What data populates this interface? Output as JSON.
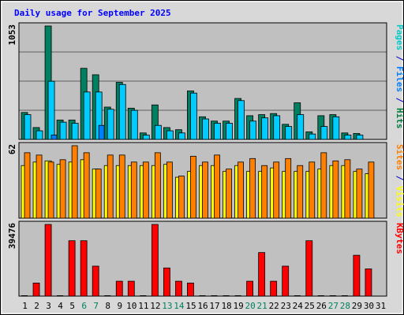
{
  "chart_data": [
    {
      "type": "bar",
      "title": "Daily usage for September 2025",
      "panel": "top",
      "ylim": [
        0,
        1053
      ],
      "y_tick_label": "1053",
      "right_label_parts": [
        {
          "text": "Pages",
          "color": "#00CCCC"
        },
        {
          "text": " / ",
          "color": "#0000CC"
        },
        {
          "text": "Files",
          "color": "#0080FF"
        },
        {
          "text": " / ",
          "color": "#0000CC"
        },
        {
          "text": "Hits",
          "color": "#008040"
        }
      ],
      "categories": [
        "1",
        "2",
        "3",
        "4",
        "5",
        "6",
        "7",
        "8",
        "9",
        "10",
        "11",
        "12",
        "13",
        "14",
        "15",
        "16",
        "17",
        "18",
        "19",
        "20",
        "21",
        "22",
        "23",
        "24",
        "25",
        "26",
        "27",
        "28",
        "29",
        "30",
        "31"
      ],
      "weekend_categories": [
        "6",
        "7",
        "13",
        "14",
        "20",
        "21",
        "27",
        "28"
      ],
      "series": [
        {
          "name": "Hits",
          "color": "#008060",
          "values": [
            250,
            110,
            1053,
            180,
            180,
            660,
            600,
            300,
            530,
            290,
            60,
            320,
            110,
            90,
            450,
            210,
            170,
            170,
            380,
            220,
            230,
            240,
            140,
            340,
            70,
            220,
            230,
            60,
            55,
            0,
            0
          ]
        },
        {
          "name": "Files",
          "color": "#00CCFF",
          "values": [
            230,
            80,
            540,
            160,
            150,
            440,
            440,
            280,
            510,
            270,
            40,
            130,
            80,
            60,
            430,
            190,
            150,
            150,
            360,
            170,
            200,
            220,
            120,
            230,
            50,
            120,
            210,
            40,
            40,
            0,
            0
          ]
        },
        {
          "name": "Pages",
          "color": "#0080FF",
          "values": [
            0,
            0,
            40,
            0,
            0,
            0,
            130,
            0,
            0,
            0,
            0,
            0,
            0,
            0,
            0,
            0,
            0,
            0,
            0,
            0,
            0,
            0,
            0,
            0,
            0,
            0,
            0,
            0,
            0,
            0,
            0
          ]
        }
      ]
    },
    {
      "type": "bar",
      "panel": "middle",
      "ylim": [
        0,
        62
      ],
      "y_tick_label": "62",
      "right_label_parts": [
        {
          "text": "Sites",
          "color": "#FF8000"
        },
        {
          "text": " / ",
          "color": "#0000CC"
        },
        {
          "text": "Visits",
          "color": "#FFFF00"
        }
      ],
      "series": [
        {
          "name": "Visits",
          "color": "#FFFF00",
          "values": [
            45,
            48,
            49,
            46,
            48,
            50,
            42,
            45,
            45,
            45,
            45,
            45,
            46,
            35,
            40,
            45,
            45,
            40,
            45,
            40,
            40,
            43,
            40,
            40,
            40,
            42,
            45,
            45,
            40,
            38,
            0
          ]
        },
        {
          "name": "Sites",
          "color": "#FF8000",
          "values": [
            56,
            54,
            48,
            50,
            62,
            56,
            42,
            54,
            54,
            48,
            48,
            56,
            48,
            36,
            53,
            48,
            54,
            42,
            48,
            51,
            45,
            48,
            51,
            45,
            48,
            56,
            49,
            50,
            42,
            48,
            0
          ]
        }
      ]
    },
    {
      "type": "bar",
      "panel": "bottom",
      "ylim": [
        0,
        39476
      ],
      "y_tick_label": "39476",
      "right_label_parts": [
        {
          "text": "KBytes",
          "color": "#FF0000"
        }
      ],
      "series": [
        {
          "name": "KBytes",
          "color": "#FF0000",
          "values": [
            0,
            7200,
            39476,
            0,
            30500,
            30500,
            16500,
            0,
            8200,
            8200,
            0,
            39476,
            15500,
            8200,
            7200,
            0,
            0,
            0,
            0,
            8200,
            24000,
            8200,
            16500,
            0,
            30500,
            0,
            0,
            0,
            22500,
            15000,
            0
          ]
        }
      ]
    }
  ],
  "colors": {
    "plot_background": "#C0C0C0",
    "frame_background": "#D8D8D8",
    "title_color": "#0000FF",
    "weekday_label_color": "#000000",
    "weekend_label_color": "#00805C"
  }
}
